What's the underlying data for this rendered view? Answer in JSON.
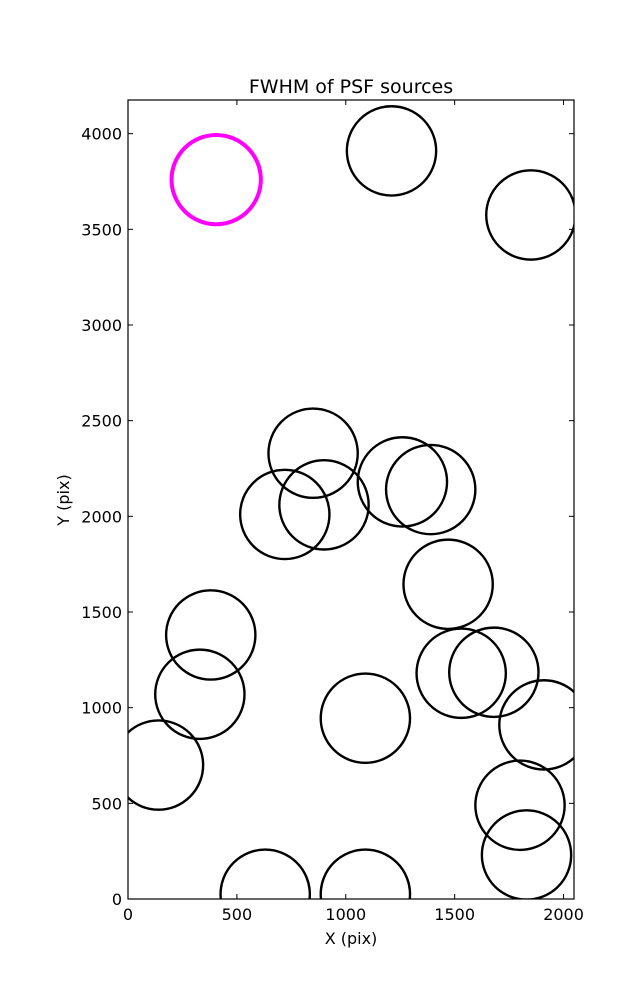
{
  "chart_data": {
    "type": "scatter",
    "title": "FWHM of PSF sources",
    "xlabel": "X (pix)",
    "ylabel": "Y (pix)",
    "xlim": [
      0,
      2048
    ],
    "ylim": [
      0,
      4176
    ],
    "xticks": [
      0,
      500,
      1000,
      1500,
      2000
    ],
    "yticks": [
      0,
      500,
      1000,
      1500,
      2000,
      2500,
      3000,
      3500,
      4000
    ],
    "grid": false,
    "marker_radius": 205,
    "series": [
      {
        "color": "#000000",
        "points": [
          {
            "x": 1210,
            "y": 3910
          },
          {
            "x": 1850,
            "y": 3575
          },
          {
            "x": 850,
            "y": 2330
          },
          {
            "x": 1260,
            "y": 2180
          },
          {
            "x": 1390,
            "y": 2140
          },
          {
            "x": 900,
            "y": 2060
          },
          {
            "x": 720,
            "y": 2010
          },
          {
            "x": 1470,
            "y": 1645
          },
          {
            "x": 380,
            "y": 1380
          },
          {
            "x": 1530,
            "y": 1180
          },
          {
            "x": 1680,
            "y": 1185
          },
          {
            "x": 330,
            "y": 1070
          },
          {
            "x": 1090,
            "y": 945
          },
          {
            "x": 1910,
            "y": 910
          },
          {
            "x": 140,
            "y": 700
          },
          {
            "x": 1800,
            "y": 490
          },
          {
            "x": 1830,
            "y": 230
          },
          {
            "x": 630,
            "y": 25
          },
          {
            "x": 1090,
            "y": 25
          }
        ]
      },
      {
        "color": "#ff00ff",
        "points": [
          {
            "x": 405,
            "y": 3760
          }
        ]
      }
    ]
  }
}
